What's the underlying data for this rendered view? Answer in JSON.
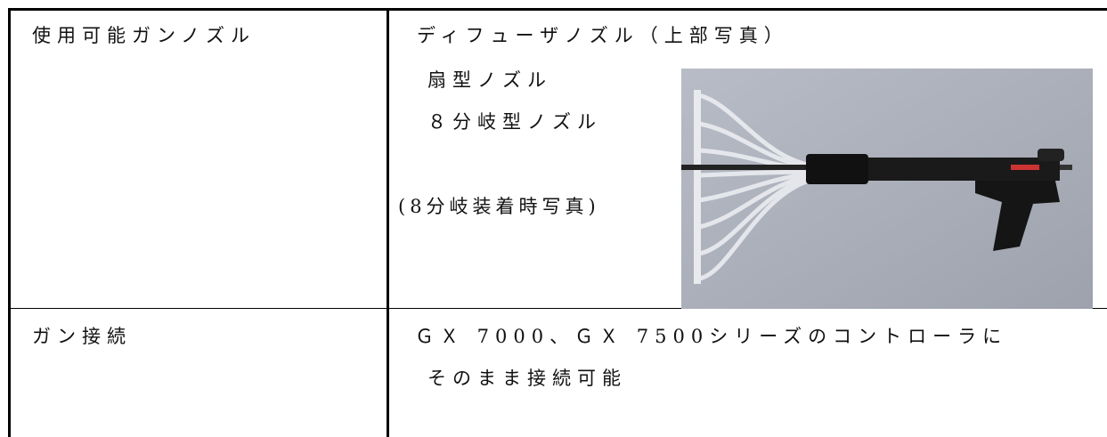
{
  "table": {
    "rows": [
      [
        "使用可能ガンノズル",
        [
          "ディフューザノズル（上部写真）",
          "扇型ノズル",
          "８分岐型ノズル",
          "(8分岐装着時写真)"
        ]
      ],
      [
        "ガン接続",
        [
          "ＧＸ 7000、ＧＸ 7500シリーズのコントローラに",
          "そのまま接続可能"
        ]
      ]
    ]
  }
}
